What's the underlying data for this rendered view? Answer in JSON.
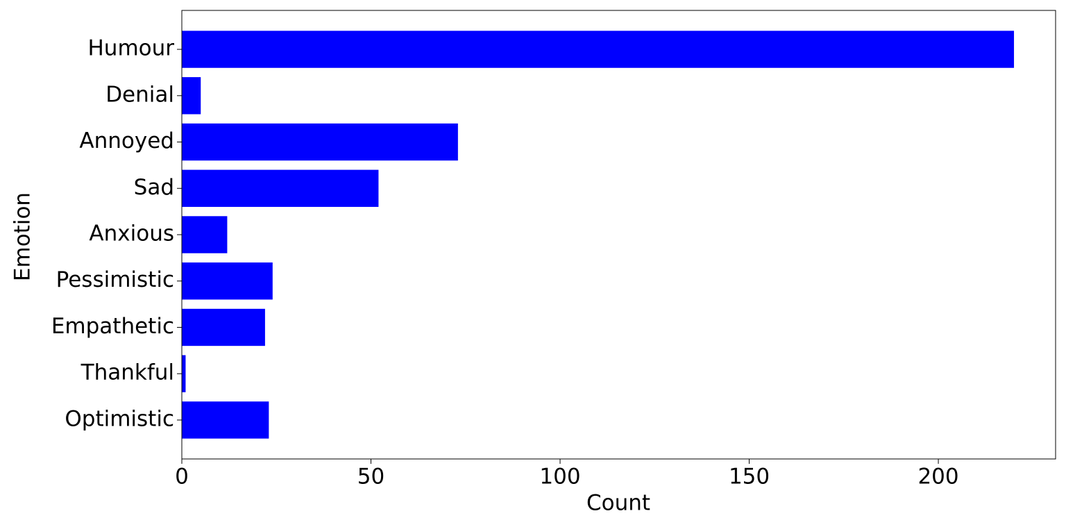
{
  "chart_data": {
    "type": "barh",
    "x_label": "Count",
    "y_label": "Emotion",
    "categories": [
      "Humour",
      "Denial",
      "Annoyed",
      "Sad",
      "Anxious",
      "Pessimistic",
      "Empathetic",
      "Thankful",
      "Optimistic"
    ],
    "values": [
      220,
      5,
      73,
      52,
      12,
      24,
      22,
      1,
      23
    ],
    "color": "#0000ff",
    "xlim": [
      0,
      231
    ],
    "xticks": [
      0,
      50,
      100,
      150,
      200
    ],
    "grid": false
  }
}
